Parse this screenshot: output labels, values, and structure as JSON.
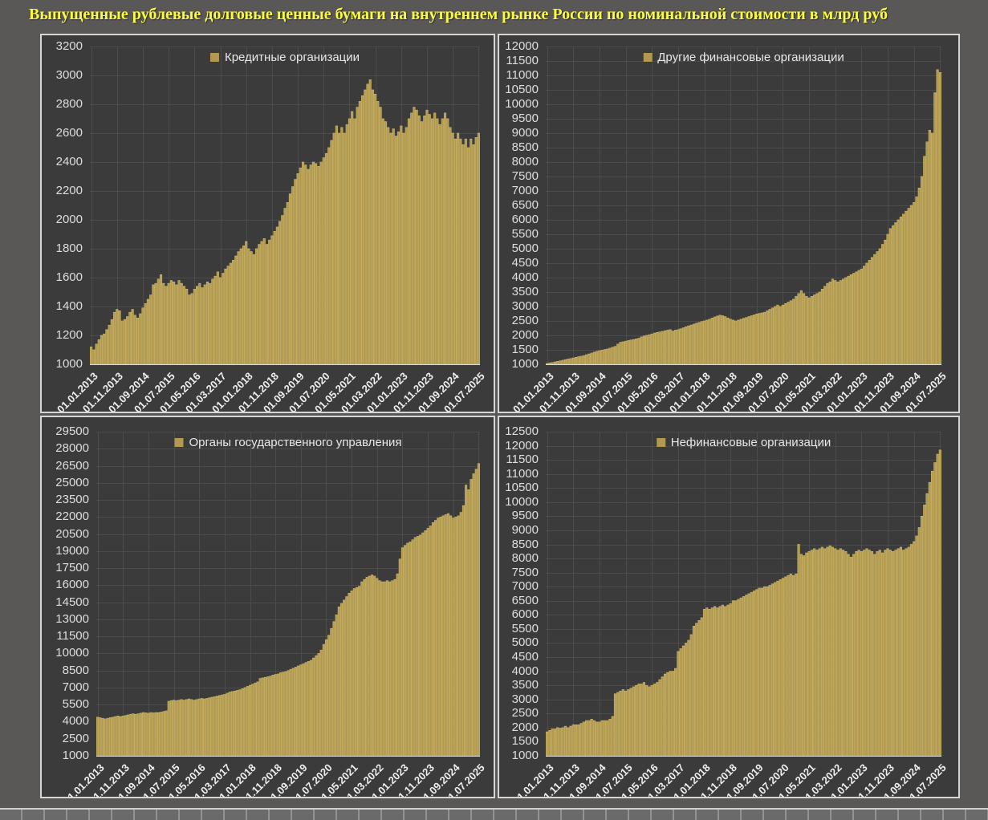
{
  "title": "Выпущенные рублевые долговые ценные бумаги на внутреннем рынке России по номинальной стоимости в млрд руб",
  "colors": {
    "background": "#5a5856",
    "panel_bg": "#3b3b3b",
    "panel_border": "#d6d6d6",
    "gridline": "#4c4c4c",
    "bar": "#b2994f",
    "bar_edge": "#cab465",
    "axis_text": "#dedede",
    "axis_line": "#dcdcdc",
    "title": "#fcfc3c"
  },
  "x_tick_labels": [
    "01.01.2013",
    "01.11.2013",
    "01.09.2014",
    "01.07.2015",
    "01.05.2016",
    "01.03.2017",
    "01.01.2018",
    "01.11.2018",
    "01.09.2019",
    "01.07.2020",
    "01.05.2021",
    "01.03.2022",
    "01.01.2023",
    "01.11.2023",
    "01.09.2024",
    "01.07.2025"
  ],
  "chart_data": [
    {
      "type": "bar",
      "name": "credit-organizations",
      "legend": "Кредитные организации",
      "xlabel": "",
      "ylabel": "",
      "x_monthly_start": "01.01.2013",
      "x_monthly_end": "01.07.2025",
      "ylim": [
        1000,
        3200
      ],
      "y_step": 200,
      "grid": true,
      "legend_position": "top-center",
      "values": [
        1120,
        1100,
        1140,
        1170,
        1200,
        1210,
        1240,
        1270,
        1310,
        1360,
        1380,
        1370,
        1300,
        1310,
        1330,
        1360,
        1380,
        1340,
        1320,
        1350,
        1390,
        1420,
        1450,
        1480,
        1550,
        1560,
        1590,
        1620,
        1560,
        1540,
        1560,
        1580,
        1570,
        1550,
        1580,
        1560,
        1540,
        1520,
        1480,
        1490,
        1520,
        1540,
        1560,
        1530,
        1550,
        1570,
        1560,
        1590,
        1610,
        1640,
        1600,
        1630,
        1660,
        1680,
        1700,
        1720,
        1750,
        1780,
        1800,
        1820,
        1850,
        1800,
        1780,
        1760,
        1800,
        1830,
        1850,
        1870,
        1830,
        1860,
        1890,
        1920,
        1950,
        1990,
        2030,
        2080,
        2120,
        2180,
        2230,
        2280,
        2320,
        2360,
        2400,
        2380,
        2350,
        2380,
        2400,
        2390,
        2370,
        2400,
        2430,
        2460,
        2500,
        2550,
        2600,
        2650,
        2600,
        2640,
        2600,
        2660,
        2700,
        2750,
        2700,
        2780,
        2820,
        2860,
        2900,
        2940,
        2970,
        2900,
        2870,
        2820,
        2780,
        2700,
        2680,
        2640,
        2600,
        2630,
        2580,
        2610,
        2650,
        2600,
        2640,
        2700,
        2740,
        2780,
        2760,
        2720,
        2680,
        2720,
        2760,
        2730,
        2700,
        2740,
        2700,
        2660,
        2700,
        2740,
        2700,
        2640,
        2600,
        2560,
        2600,
        2560,
        2520,
        2560,
        2500,
        2560,
        2520,
        2570,
        2600
      ]
    },
    {
      "type": "bar",
      "name": "other-financial-organizations",
      "legend": "Другие финансовые организации",
      "xlabel": "",
      "ylabel": "",
      "x_monthly_start": "01.01.2013",
      "x_monthly_end": "01.07.2025",
      "ylim": [
        1000,
        12000
      ],
      "y_step": 500,
      "grid": true,
      "legend_position": "top-center",
      "values": [
        1030,
        1050,
        1060,
        1080,
        1100,
        1120,
        1140,
        1160,
        1180,
        1200,
        1220,
        1240,
        1260,
        1280,
        1300,
        1330,
        1360,
        1390,
        1420,
        1450,
        1470,
        1490,
        1510,
        1530,
        1560,
        1590,
        1620,
        1700,
        1760,
        1780,
        1800,
        1820,
        1840,
        1860,
        1880,
        1900,
        1950,
        1980,
        2000,
        2020,
        2050,
        2080,
        2100,
        2120,
        2140,
        2160,
        2180,
        2200,
        2150,
        2180,
        2200,
        2230,
        2260,
        2300,
        2330,
        2360,
        2390,
        2420,
        2450,
        2480,
        2500,
        2530,
        2560,
        2600,
        2640,
        2670,
        2700,
        2680,
        2650,
        2600,
        2560,
        2530,
        2500,
        2530,
        2560,
        2590,
        2620,
        2650,
        2680,
        2710,
        2740,
        2760,
        2780,
        2800,
        2850,
        2900,
        2950,
        3000,
        3050,
        3000,
        3050,
        3100,
        3150,
        3200,
        3250,
        3350,
        3450,
        3550,
        3450,
        3350,
        3300,
        3350,
        3400,
        3450,
        3500,
        3600,
        3700,
        3800,
        3850,
        3950,
        3900,
        3850,
        3900,
        3950,
        4000,
        4050,
        4100,
        4150,
        4200,
        4250,
        4300,
        4400,
        4500,
        4600,
        4700,
        4800,
        4900,
        5000,
        5150,
        5300,
        5500,
        5700,
        5800,
        5900,
        6000,
        6100,
        6200,
        6300,
        6400,
        6500,
        6600,
        6800,
        7100,
        7500,
        8200,
        8700,
        9100,
        9000,
        10400,
        11200,
        11100
      ]
    },
    {
      "type": "bar",
      "name": "government-bodies",
      "legend": "Органы государственного управления",
      "xlabel": "",
      "ylabel": "",
      "x_monthly_start": "01.01.2013",
      "x_monthly_end": "01.07.2025",
      "ylim": [
        1000,
        29500
      ],
      "y_step": 1500,
      "grid": true,
      "legend_position": "top-center",
      "values": [
        4400,
        4350,
        4300,
        4250,
        4300,
        4350,
        4400,
        4450,
        4500,
        4450,
        4500,
        4550,
        4600,
        4650,
        4700,
        4650,
        4700,
        4750,
        4800,
        4780,
        4750,
        4800,
        4780,
        4800,
        4800,
        4850,
        4900,
        4950,
        5800,
        5850,
        5900,
        5850,
        5900,
        5950,
        5900,
        5950,
        6000,
        5950,
        5900,
        5950,
        6000,
        6050,
        6000,
        6050,
        6100,
        6150,
        6200,
        6250,
        6300,
        6350,
        6400,
        6500,
        6600,
        6650,
        6700,
        6750,
        6800,
        6900,
        7000,
        7100,
        7200,
        7300,
        7400,
        7500,
        7800,
        7850,
        7900,
        7950,
        8000,
        8100,
        8150,
        8200,
        8300,
        8350,
        8400,
        8500,
        8600,
        8700,
        8800,
        8900,
        9000,
        9100,
        9200,
        9300,
        9400,
        9600,
        9800,
        10000,
        10300,
        10800,
        11200,
        11600,
        12200,
        12800,
        13400,
        14100,
        14400,
        14700,
        15000,
        15300,
        15500,
        15700,
        15800,
        15900,
        16300,
        16500,
        16700,
        16800,
        16900,
        16800,
        16600,
        16400,
        16300,
        16300,
        16400,
        16300,
        16400,
        16500,
        17000,
        18300,
        19300,
        19500,
        19700,
        19800,
        20000,
        20200,
        20300,
        20400,
        20600,
        20800,
        21000,
        21200,
        21500,
        21700,
        21900,
        22000,
        22100,
        22200,
        22300,
        22100,
        21900,
        22000,
        22100,
        22400,
        23000,
        24800,
        24400,
        25300,
        25800,
        26200,
        26700
      ]
    },
    {
      "type": "bar",
      "name": "non-financial-organizations",
      "legend": "Нефинансовые организации",
      "xlabel": "",
      "ylabel": "",
      "x_monthly_start": "01.01.2013",
      "x_monthly_end": "01.07.2025",
      "ylim": [
        1000,
        12500
      ],
      "y_step": 500,
      "grid": true,
      "legend_position": "top-center",
      "values": [
        1850,
        1900,
        1950,
        1950,
        2000,
        1980,
        2000,
        2050,
        2000,
        2050,
        2100,
        2100,
        2100,
        2150,
        2200,
        2250,
        2250,
        2300,
        2250,
        2200,
        2200,
        2250,
        2250,
        2250,
        2300,
        2400,
        3200,
        3250,
        3300,
        3350,
        3300,
        3350,
        3400,
        3450,
        3500,
        3550,
        3550,
        3600,
        3500,
        3450,
        3500,
        3550,
        3600,
        3700,
        3800,
        3900,
        3950,
        4000,
        4000,
        4100,
        4700,
        4800,
        4900,
        5000,
        5100,
        5300,
        5600,
        5700,
        5800,
        5900,
        6200,
        6250,
        6200,
        6250,
        6300,
        6250,
        6300,
        6350,
        6300,
        6350,
        6400,
        6500,
        6500,
        6550,
        6600,
        6650,
        6700,
        6750,
        6800,
        6850,
        6900,
        6950,
        6950,
        7000,
        7000,
        7050,
        7100,
        7150,
        7200,
        7250,
        7300,
        7350,
        7400,
        7450,
        7400,
        7450,
        8500,
        8150,
        8100,
        8200,
        8250,
        8300,
        8350,
        8300,
        8350,
        8400,
        8350,
        8400,
        8450,
        8400,
        8350,
        8300,
        8350,
        8300,
        8250,
        8150,
        8050,
        8150,
        8250,
        8300,
        8250,
        8300,
        8350,
        8300,
        8250,
        8150,
        8250,
        8300,
        8200,
        8300,
        8350,
        8300,
        8250,
        8300,
        8350,
        8400,
        8300,
        8350,
        8400,
        8500,
        8600,
        8800,
        9100,
        9500,
        9900,
        10300,
        10700,
        11100,
        11400,
        11700,
        11850
      ]
    }
  ]
}
